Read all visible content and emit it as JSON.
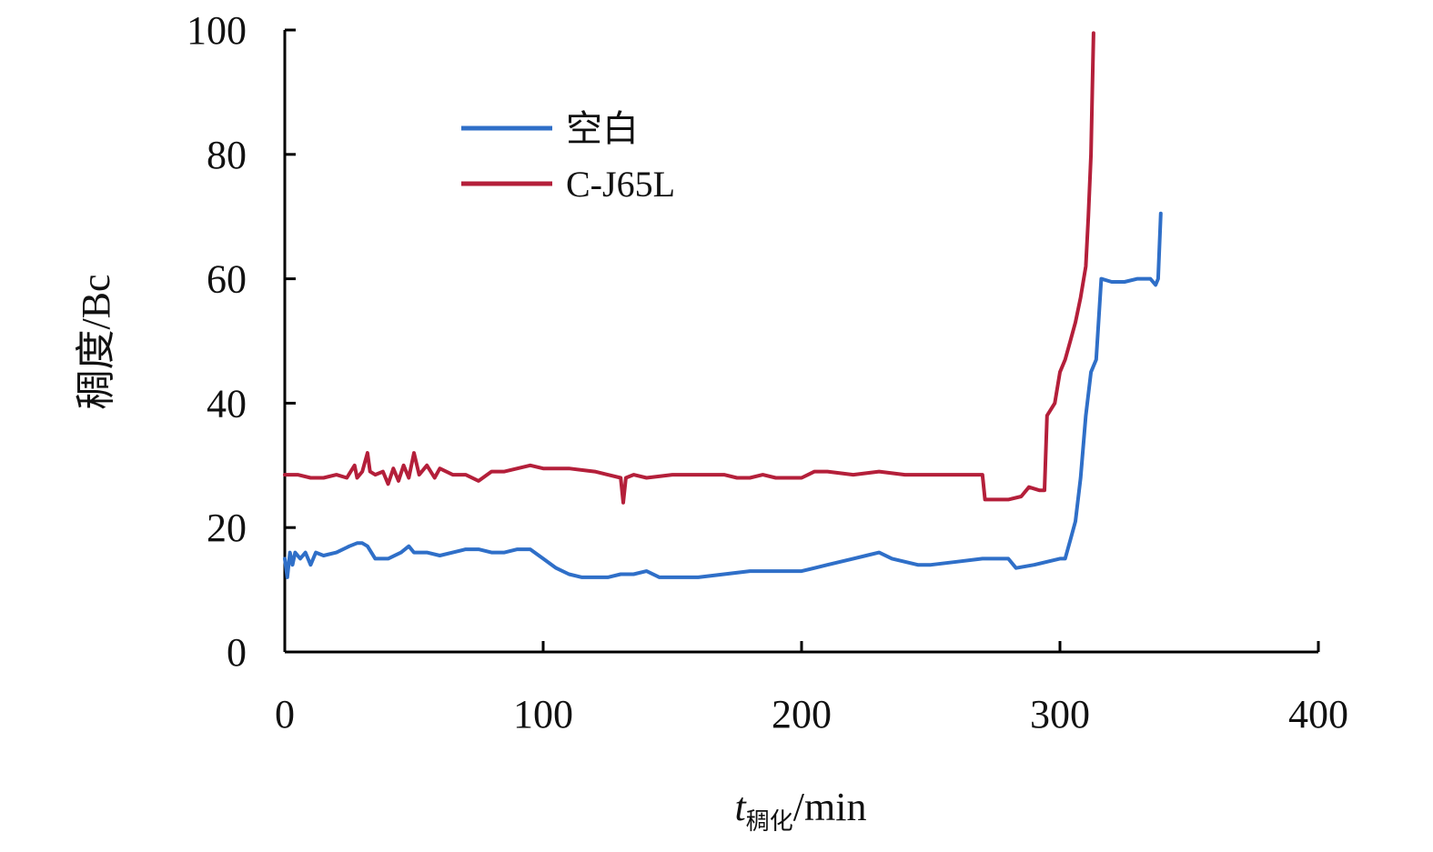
{
  "chart_data": {
    "type": "line",
    "xlabel": {
      "var": "t",
      "sub": "稠化",
      "unit": "/min"
    },
    "ylabel": "稠度/Bc",
    "xlim": [
      0,
      400
    ],
    "ylim": [
      0,
      100
    ],
    "xticks": [
      0,
      100,
      200,
      300,
      400
    ],
    "yticks": [
      0,
      20,
      40,
      60,
      80,
      100
    ],
    "grid": false,
    "legend": "top-left",
    "series": [
      {
        "name": "空白",
        "color": "#2f6fc8",
        "points": [
          [
            0,
            15
          ],
          [
            1,
            12
          ],
          [
            2,
            16
          ],
          [
            3,
            14
          ],
          [
            4,
            16
          ],
          [
            6,
            15
          ],
          [
            8,
            16
          ],
          [
            10,
            14
          ],
          [
            12,
            16
          ],
          [
            15,
            15.5
          ],
          [
            20,
            16
          ],
          [
            25,
            17
          ],
          [
            28,
            17.5
          ],
          [
            30,
            17.5
          ],
          [
            32,
            17
          ],
          [
            35,
            15
          ],
          [
            40,
            15
          ],
          [
            45,
            16
          ],
          [
            48,
            17
          ],
          [
            50,
            16
          ],
          [
            55,
            16
          ],
          [
            60,
            15.5
          ],
          [
            65,
            16
          ],
          [
            70,
            16.5
          ],
          [
            75,
            16.5
          ],
          [
            80,
            16
          ],
          [
            85,
            16
          ],
          [
            90,
            16.5
          ],
          [
            95,
            16.5
          ],
          [
            100,
            15
          ],
          [
            105,
            13.5
          ],
          [
            110,
            12.5
          ],
          [
            115,
            12
          ],
          [
            120,
            12
          ],
          [
            125,
            12
          ],
          [
            130,
            12.5
          ],
          [
            135,
            12.5
          ],
          [
            140,
            13
          ],
          [
            145,
            12
          ],
          [
            150,
            12
          ],
          [
            160,
            12
          ],
          [
            170,
            12.5
          ],
          [
            180,
            13
          ],
          [
            190,
            13
          ],
          [
            200,
            13
          ],
          [
            205,
            13.5
          ],
          [
            210,
            14
          ],
          [
            220,
            15
          ],
          [
            225,
            15.5
          ],
          [
            230,
            16
          ],
          [
            235,
            15
          ],
          [
            240,
            14.5
          ],
          [
            245,
            14
          ],
          [
            250,
            14
          ],
          [
            260,
            14.5
          ],
          [
            270,
            15
          ],
          [
            280,
            15
          ],
          [
            283,
            13.5
          ],
          [
            290,
            14
          ],
          [
            295,
            14.5
          ],
          [
            300,
            15
          ],
          [
            302,
            15
          ],
          [
            304,
            18
          ],
          [
            306,
            21
          ],
          [
            308,
            28
          ],
          [
            310,
            38
          ],
          [
            312,
            45
          ],
          [
            314,
            47
          ],
          [
            316,
            60
          ],
          [
            320,
            59.5
          ],
          [
            325,
            59.5
          ],
          [
            330,
            60
          ],
          [
            335,
            60
          ],
          [
            337,
            59
          ],
          [
            338,
            60
          ],
          [
            339,
            70.5
          ]
        ]
      },
      {
        "name": "C-J65L",
        "color": "#b41f3a",
        "points": [
          [
            0,
            28.5
          ],
          [
            5,
            28.5
          ],
          [
            10,
            28
          ],
          [
            15,
            28
          ],
          [
            20,
            28.5
          ],
          [
            24,
            28
          ],
          [
            27,
            30
          ],
          [
            28,
            28
          ],
          [
            30,
            29
          ],
          [
            32,
            32
          ],
          [
            33,
            29
          ],
          [
            35,
            28.5
          ],
          [
            38,
            29
          ],
          [
            40,
            27
          ],
          [
            42,
            29.5
          ],
          [
            44,
            27.5
          ],
          [
            46,
            30
          ],
          [
            48,
            28
          ],
          [
            50,
            32
          ],
          [
            52,
            28.5
          ],
          [
            55,
            30
          ],
          [
            58,
            28
          ],
          [
            60,
            29.5
          ],
          [
            65,
            28.5
          ],
          [
            70,
            28.5
          ],
          [
            75,
            27.5
          ],
          [
            80,
            29
          ],
          [
            85,
            29
          ],
          [
            90,
            29.5
          ],
          [
            95,
            30
          ],
          [
            100,
            29.5
          ],
          [
            110,
            29.5
          ],
          [
            120,
            29
          ],
          [
            125,
            28.5
          ],
          [
            130,
            28
          ],
          [
            131,
            24
          ],
          [
            132,
            28
          ],
          [
            135,
            28.5
          ],
          [
            140,
            28
          ],
          [
            150,
            28.5
          ],
          [
            160,
            28.5
          ],
          [
            170,
            28.5
          ],
          [
            175,
            28
          ],
          [
            180,
            28
          ],
          [
            185,
            28.5
          ],
          [
            190,
            28
          ],
          [
            200,
            28
          ],
          [
            205,
            29
          ],
          [
            210,
            29
          ],
          [
            220,
            28.5
          ],
          [
            230,
            29
          ],
          [
            240,
            28.5
          ],
          [
            250,
            28.5
          ],
          [
            260,
            28.5
          ],
          [
            268,
            28.5
          ],
          [
            270,
            28.5
          ],
          [
            271,
            24.5
          ],
          [
            275,
            24.5
          ],
          [
            280,
            24.5
          ],
          [
            285,
            25
          ],
          [
            288,
            26.5
          ],
          [
            292,
            26
          ],
          [
            294,
            26
          ],
          [
            295,
            38
          ],
          [
            298,
            40
          ],
          [
            300,
            45
          ],
          [
            302,
            47
          ],
          [
            304,
            50
          ],
          [
            306,
            53
          ],
          [
            308,
            57
          ],
          [
            310,
            62
          ],
          [
            311,
            70
          ],
          [
            312,
            80
          ],
          [
            312.5,
            90
          ],
          [
            313,
            99.5
          ]
        ]
      }
    ]
  }
}
